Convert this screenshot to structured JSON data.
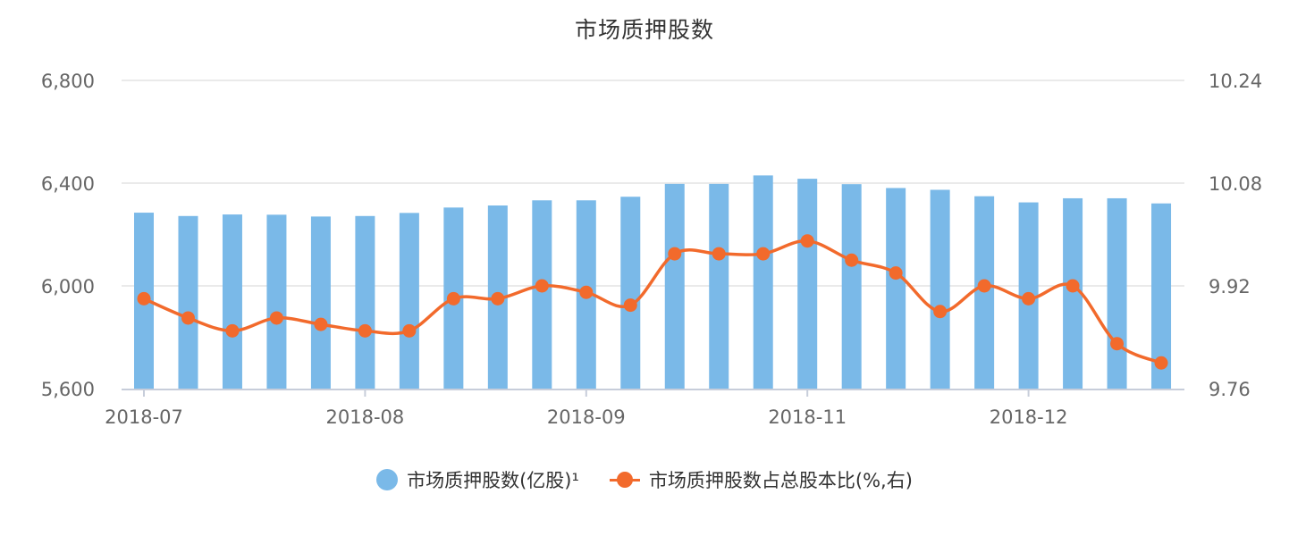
{
  "chart_data": {
    "type": "bar",
    "title": "市场质押股数",
    "x_tick_labels": [
      "2018-07",
      "2018-08",
      "2018-09",
      "2018-11",
      "2018-12"
    ],
    "x_tick_positions": [
      0,
      5,
      10,
      15,
      20
    ],
    "y_left": {
      "ticks": [
        "6,800",
        "6,400",
        "6,000",
        "5,600"
      ],
      "min": 5600,
      "max": 6800
    },
    "y_right": {
      "ticks": [
        "10.24",
        "10.08",
        "9.92",
        "9.76"
      ],
      "min": 9.76,
      "max": 10.24
    },
    "grid": true,
    "legend_position": "bottom",
    "series": [
      {
        "name": "市场质押股数(亿股)¹",
        "type": "bar",
        "axis": "left",
        "color": "#7ab9e8",
        "values": [
          6285,
          6272,
          6278,
          6277,
          6270,
          6272,
          6284,
          6305,
          6313,
          6333,
          6333,
          6347,
          6397,
          6397,
          6430,
          6417,
          6396,
          6381,
          6374,
          6349,
          6325,
          6341,
          6341,
          6321
        ]
      },
      {
        "name": "市场质押股数占总股本比(%,右)",
        "type": "line",
        "axis": "right",
        "color": "#f26a2c",
        "values": [
          9.9,
          9.87,
          9.85,
          9.87,
          9.86,
          9.85,
          9.85,
          9.9,
          9.9,
          9.92,
          9.91,
          9.89,
          9.97,
          9.97,
          9.97,
          9.99,
          9.96,
          9.94,
          9.88,
          9.92,
          9.9,
          9.92,
          9.83,
          9.8
        ]
      }
    ]
  }
}
